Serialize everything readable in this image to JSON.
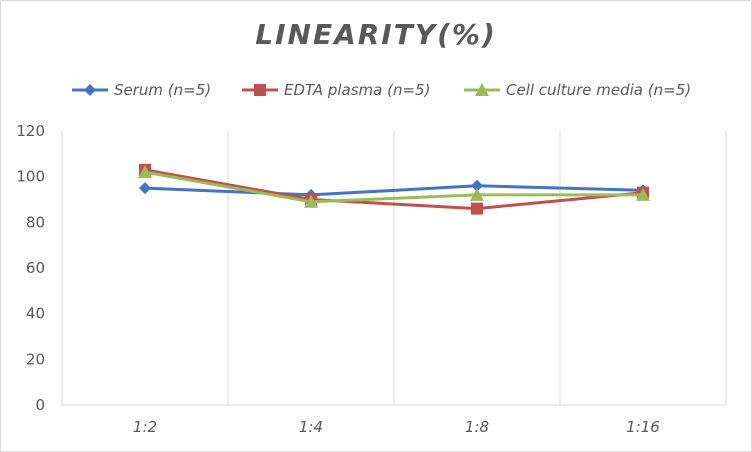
{
  "chart_data": {
    "type": "line",
    "title": "LINEARITY(%)",
    "xlabel": "",
    "ylabel": "",
    "categories": [
      "1:2",
      "1:4",
      "1:8",
      "1:16"
    ],
    "ylim": [
      0,
      120
    ],
    "yticks": [
      0,
      20,
      40,
      60,
      80,
      100,
      120
    ],
    "grid": "vertical",
    "legend_position": "top",
    "series": [
      {
        "name": "Serum (n=5)",
        "values": [
          95,
          92,
          96,
          94
        ],
        "color": "#4472C4",
        "marker": "diamond"
      },
      {
        "name": "EDTA plasma (n=5)",
        "values": [
          103,
          90,
          86,
          93
        ],
        "color": "#C0504D",
        "marker": "square"
      },
      {
        "name": "Cell culture media (n=5)",
        "values": [
          102,
          89,
          92,
          92
        ],
        "color": "#9BBB59",
        "marker": "triangle"
      }
    ]
  }
}
